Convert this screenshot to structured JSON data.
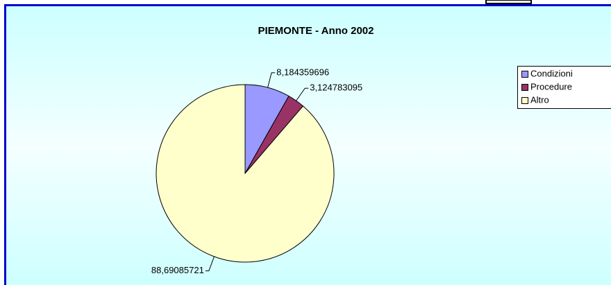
{
  "chart_data": {
    "type": "pie",
    "title": "PIEMONTE - Anno 2002",
    "categories": [
      "Condizioni",
      "Procedure",
      "Altro"
    ],
    "values": [
      8.184359696,
      3.124783095,
      88.69085721
    ],
    "value_labels": [
      "8,184359696",
      "3,124783095",
      "88,69085721"
    ],
    "colors": [
      "#9999ff",
      "#993366",
      "#ffffcc"
    ],
    "legend": "right"
  }
}
